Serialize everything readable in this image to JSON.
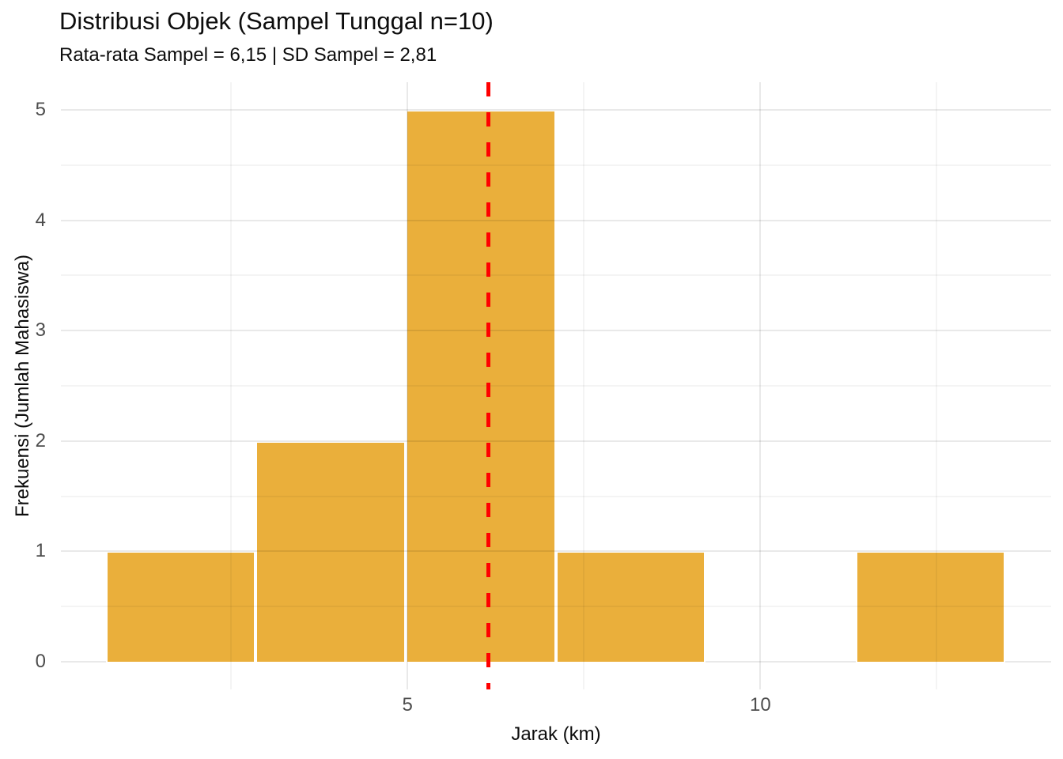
{
  "chart_data": {
    "type": "bar",
    "subtype": "histogram",
    "title": "Distribusi Objek (Sampel Tunggal n=10)",
    "subtitle": "Rata-rata Sampel = 6,15 | SD Sampel = 2,81",
    "xlabel": "Jarak (km)",
    "ylabel": "Frekuensi (Jumlah Mahasiswa)",
    "sample_mean_label": "6,15",
    "sample_sd_label": "2,81",
    "n": 10,
    "bins": [
      {
        "x0": 0.73,
        "x1": 2.85,
        "count": 1
      },
      {
        "x0": 2.85,
        "x1": 4.98,
        "count": 2
      },
      {
        "x0": 4.98,
        "x1": 7.1,
        "count": 5
      },
      {
        "x0": 7.1,
        "x1": 9.22,
        "count": 1
      },
      {
        "x0": 9.22,
        "x1": 11.35,
        "count": 0
      },
      {
        "x0": 11.35,
        "x1": 13.47,
        "count": 1
      }
    ],
    "mean_line": {
      "x": 6.15,
      "style": "dashed",
      "color": "#FF0000"
    },
    "x_ticks": [
      5,
      10
    ],
    "y_ticks": [
      0,
      1,
      2,
      3,
      4,
      5
    ],
    "x_minor_gridlines": [
      2.5,
      7.5,
      12.5
    ],
    "y_minor_gridlines": [
      0.5,
      1.5,
      2.5,
      3.5,
      4.5
    ],
    "xlim": [
      0.09,
      14.12
    ],
    "ylim": [
      -0.25,
      5.25
    ],
    "grid": true,
    "legend": "none",
    "colors": {
      "bar_fill": "#EAAF3B",
      "bar_stroke": "#FFFFFF",
      "mean_line": "#FF0000",
      "grid_major": "#E8E8E8",
      "grid_minor": "#F3F3F3",
      "tick_text": "#4D4D4D",
      "background": "#FFFFFF"
    }
  }
}
